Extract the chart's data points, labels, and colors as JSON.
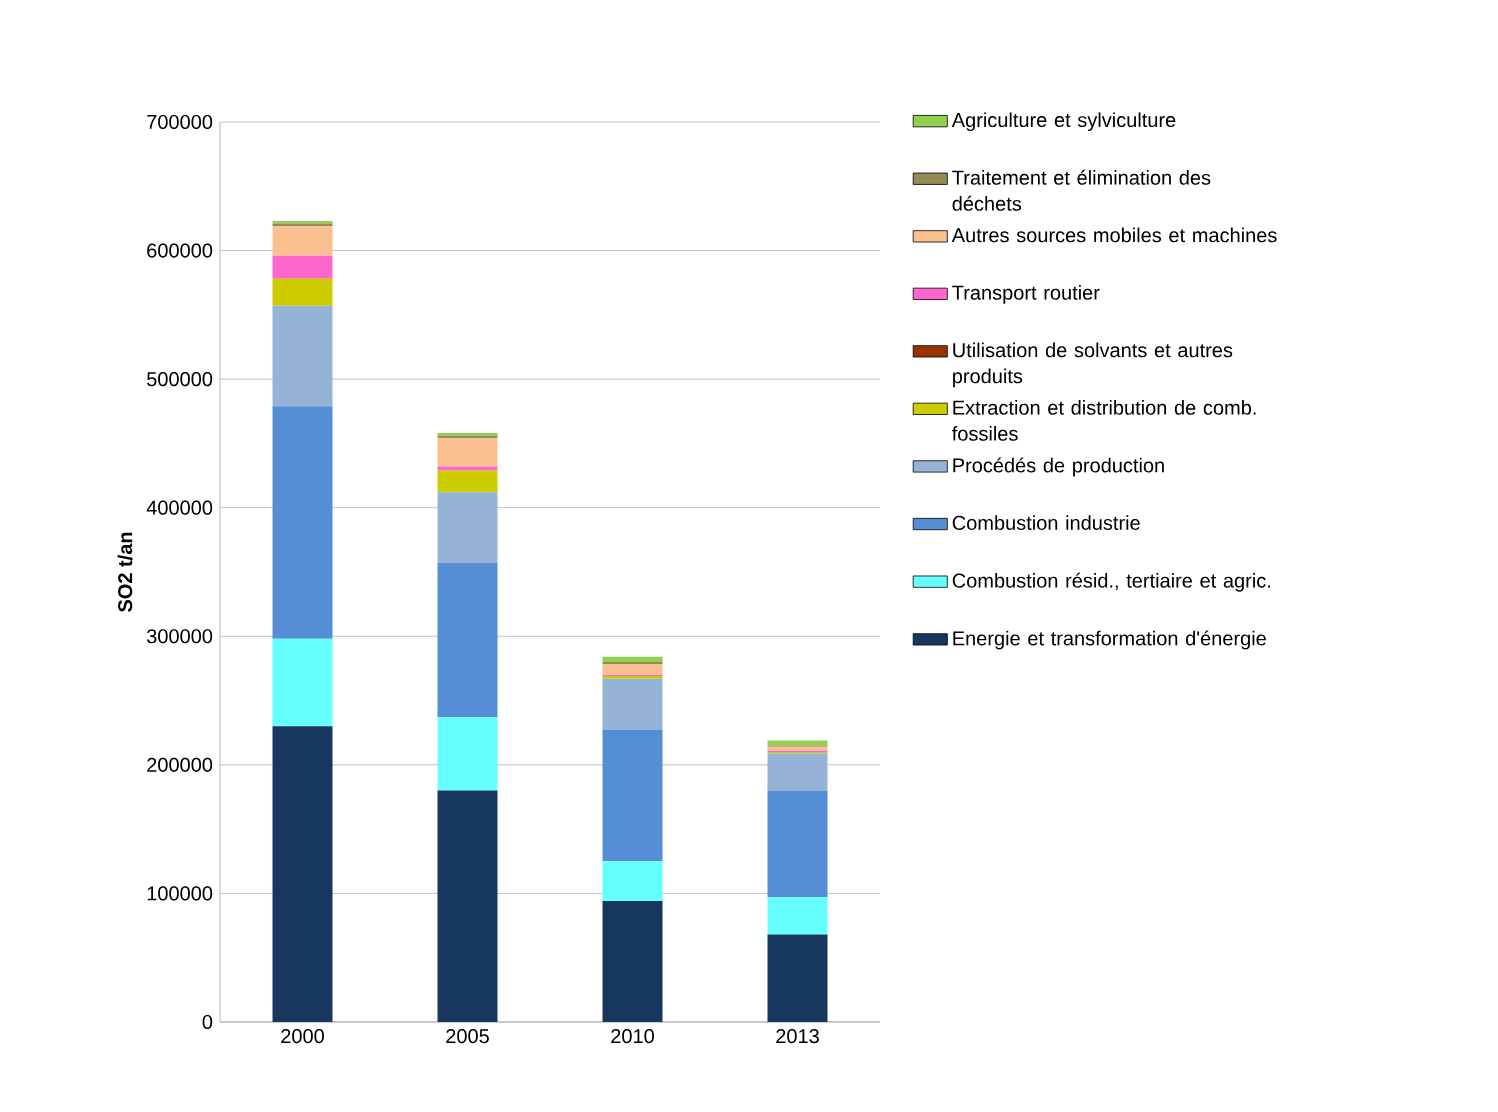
{
  "chart_data": {
    "type": "bar",
    "stacked": true,
    "ylabel": "SO2 t/an",
    "categories": [
      "2000",
      "2005",
      "2010",
      "2013"
    ],
    "series": [
      {
        "name": "Energie et transformation d'énergie",
        "color": "#17375e",
        "values": [
          230000,
          180000,
          94000,
          68000
        ]
      },
      {
        "name": "Combustion résid., tertiaire et agric.",
        "color": "#66ffff",
        "values": [
          68000,
          57000,
          31000,
          29000
        ]
      },
      {
        "name": "Combustion industrie",
        "color": "#558ed5",
        "values": [
          181000,
          120000,
          102000,
          83000
        ]
      },
      {
        "name": "Procédés de production",
        "color": "#95b3d7",
        "values": [
          78000,
          55000,
          40000,
          29000
        ]
      },
      {
        "name": "Extraction et distribution de comb. fossiles",
        "color": "#cccc00",
        "values": [
          21000,
          17000,
          2000,
          1000
        ]
      },
      {
        "name": "Utilisation de solvants et autres produits",
        "color": "#993300",
        "values": [
          null,
          null,
          null,
          null
        ]
      },
      {
        "name": "Transport routier",
        "color": "#ff66cc",
        "values": [
          18000,
          3000,
          1000,
          1000
        ]
      },
      {
        "name": "Autres sources mobiles et machines",
        "color": "#fac090",
        "values": [
          23000,
          22000,
          8000,
          3000
        ]
      },
      {
        "name": "Traitement et élimination des déchets",
        "color": "#948a54",
        "values": [
          2000,
          2000,
          2000,
          1000
        ]
      },
      {
        "name": "Agriculture et sylviculture",
        "color": "#92d050",
        "values": [
          2000,
          2000,
          4000,
          4000
        ]
      }
    ],
    "ylim": [
      0,
      700000
    ],
    "yticks": [
      0,
      100000,
      200000,
      300000,
      400000,
      500000,
      600000,
      700000
    ],
    "grid": "y",
    "legend": "right"
  }
}
